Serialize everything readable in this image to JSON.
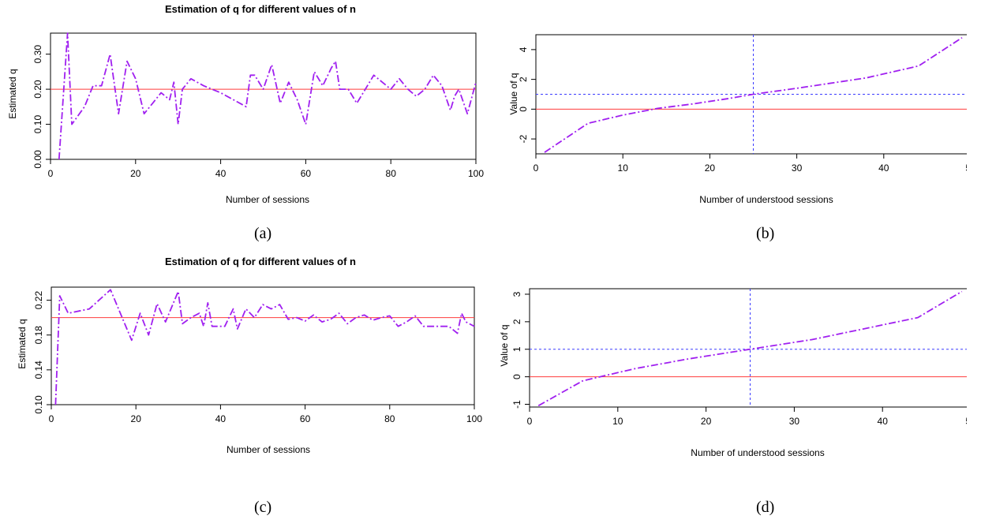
{
  "chart_data": [
    {
      "type": "line",
      "title": "Estimation of q for different values of n",
      "xlabel": "Number of sessions",
      "ylabel": "Estimated q",
      "xlim": [
        0,
        100
      ],
      "ylim": [
        0,
        0.36
      ],
      "xticks": [
        "0",
        "20",
        "40",
        "60",
        "80",
        "100"
      ],
      "xtick_values": [
        0,
        20,
        40,
        60,
        80,
        100
      ],
      "yticks": [
        "0.00",
        "0.10",
        "0.20",
        "0.30"
      ],
      "ytick_values": [
        0,
        0.1,
        0.2,
        0.3
      ],
      "reference_h": [
        0.2
      ],
      "reference_v": [],
      "series": [
        {
          "line_style": "dash-dot",
          "color": "#a020f0",
          "x": [
            2,
            4,
            5,
            8,
            10,
            12,
            14,
            16,
            18,
            20,
            22,
            24,
            26,
            28,
            29,
            30,
            31,
            33,
            36,
            40,
            46,
            47,
            48,
            50,
            52,
            54,
            56,
            58,
            60,
            62,
            64,
            66,
            67,
            68,
            70,
            72,
            74,
            76,
            78,
            80,
            82,
            84,
            86,
            88,
            90,
            92,
            94,
            95,
            96,
            98,
            100
          ],
          "y": [
            0.0,
            0.36,
            0.1,
            0.15,
            0.21,
            0.21,
            0.3,
            0.13,
            0.28,
            0.23,
            0.13,
            0.16,
            0.19,
            0.17,
            0.22,
            0.1,
            0.2,
            0.23,
            0.21,
            0.19,
            0.15,
            0.24,
            0.24,
            0.2,
            0.27,
            0.16,
            0.22,
            0.17,
            0.1,
            0.25,
            0.21,
            0.26,
            0.28,
            0.2,
            0.2,
            0.16,
            0.2,
            0.24,
            0.22,
            0.2,
            0.23,
            0.2,
            0.18,
            0.2,
            0.24,
            0.21,
            0.14,
            0.18,
            0.2,
            0.13,
            0.22
          ]
        }
      ]
    },
    {
      "type": "line",
      "title": "",
      "xlabel": "Number of understood sessions",
      "ylabel": "Value of q",
      "xlim": [
        0,
        50
      ],
      "ylim": [
        -3,
        5
      ],
      "xticks": [
        "0",
        "10",
        "20",
        "30",
        "40",
        "50"
      ],
      "xtick_values": [
        0,
        10,
        20,
        30,
        40,
        50
      ],
      "yticks": [
        "-2",
        "0",
        "2",
        "4"
      ],
      "ytick_values": [
        -2,
        0,
        2,
        4
      ],
      "reference_h": [
        0,
        1
      ],
      "reference_v": [
        25
      ],
      "series": [
        {
          "line_style": "dash-dot",
          "color": "#a020f0",
          "x": [
            1,
            6,
            10,
            14,
            18,
            22,
            25,
            30,
            38,
            44,
            49
          ],
          "y": [
            -2.9,
            -0.95,
            -0.4,
            0.05,
            0.35,
            0.7,
            1.0,
            1.4,
            2.1,
            2.9,
            4.8
          ]
        }
      ]
    },
    {
      "type": "line",
      "title": "Estimation of q for different values of n",
      "xlabel": "Number of sessions",
      "ylabel": "Estimated q",
      "xlim": [
        0,
        100
      ],
      "ylim": [
        0.1,
        0.235
      ],
      "xticks": [
        "0",
        "20",
        "40",
        "60",
        "80",
        "100"
      ],
      "xtick_values": [
        0,
        20,
        40,
        60,
        80,
        100
      ],
      "yticks": [
        "0.10",
        "0.14",
        "0.18",
        "0.22"
      ],
      "ytick_values": [
        0.1,
        0.14,
        0.18,
        0.22
      ],
      "reference_h": [
        0.2
      ],
      "reference_v": [],
      "series": [
        {
          "line_style": "dash-dot",
          "color": "#a020f0",
          "x": [
            1,
            2,
            4,
            9,
            14,
            19,
            21,
            23,
            25,
            27,
            30,
            31,
            33,
            35,
            36,
            37,
            38,
            41,
            43,
            44,
            46,
            48,
            50,
            52,
            54,
            56,
            58,
            60,
            62,
            64,
            66,
            68,
            70,
            72,
            74,
            76,
            78,
            80,
            82,
            84,
            86,
            88,
            90,
            94,
            96,
            97,
            98,
            100
          ],
          "y": [
            0.1,
            0.225,
            0.205,
            0.21,
            0.232,
            0.174,
            0.205,
            0.18,
            0.216,
            0.195,
            0.23,
            0.193,
            0.2,
            0.205,
            0.19,
            0.217,
            0.19,
            0.19,
            0.21,
            0.187,
            0.21,
            0.2,
            0.215,
            0.21,
            0.215,
            0.198,
            0.2,
            0.196,
            0.203,
            0.195,
            0.198,
            0.205,
            0.193,
            0.2,
            0.203,
            0.197,
            0.2,
            0.202,
            0.19,
            0.195,
            0.202,
            0.19,
            0.19,
            0.19,
            0.182,
            0.205,
            0.195,
            0.19
          ]
        }
      ]
    },
    {
      "type": "line",
      "title": "",
      "xlabel": "Number of understood sessions",
      "ylabel": "Value of q",
      "xlim": [
        0,
        50
      ],
      "ylim": [
        -1.1,
        3.2
      ],
      "xticks": [
        "0",
        "10",
        "20",
        "30",
        "40",
        "50"
      ],
      "xtick_values": [
        0,
        10,
        20,
        30,
        40,
        50
      ],
      "yticks": [
        "-1",
        "0",
        "1",
        "2",
        "3"
      ],
      "ytick_values": [
        -1,
        0,
        1,
        2,
        3
      ],
      "reference_h": [
        0,
        1
      ],
      "reference_v": [
        25
      ],
      "series": [
        {
          "line_style": "dash-dot",
          "color": "#a020f0",
          "x": [
            1,
            6,
            8,
            12,
            18,
            25,
            32,
            38,
            44,
            49
          ],
          "y": [
            -1.05,
            -0.15,
            0.0,
            0.3,
            0.65,
            1.0,
            1.35,
            1.75,
            2.15,
            3.1
          ]
        }
      ]
    }
  ],
  "captions": [
    "(a)",
    "(b)",
    "(c)",
    "(d)"
  ],
  "colors": {
    "series": "#a020f0",
    "reference_red": "#ff3b3b",
    "reference_blue": "#3b3bff",
    "axis": "#000000"
  }
}
